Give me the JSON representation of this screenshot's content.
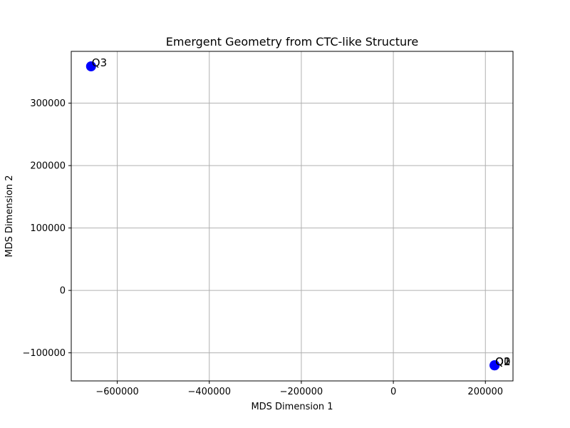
{
  "chart_data": {
    "type": "scatter",
    "title": "Emergent Geometry from CTC-like Structure",
    "xlabel": "MDS Dimension 1",
    "ylabel": "MDS Dimension 2",
    "xlim": [
      -700000,
      260000
    ],
    "ylim": [
      -145000,
      383000
    ],
    "grid": true,
    "xticks": [
      -600000,
      -400000,
      -200000,
      0,
      200000
    ],
    "xtick_labels": [
      "−600000",
      "−400000",
      "−200000",
      "0",
      "200000"
    ],
    "yticks": [
      -100000,
      0,
      100000,
      200000,
      300000
    ],
    "ytick_labels": [
      "−100000",
      "0",
      "100000",
      "200000",
      "300000"
    ],
    "points": [
      {
        "label": "Q0",
        "x": 220000,
        "y": -120000
      },
      {
        "label": "Q1",
        "x": 220000,
        "y": -120000
      },
      {
        "label": "Q2",
        "x": 220000,
        "y": -120000
      },
      {
        "label": "Q3",
        "x": -657000,
        "y": 359000
      }
    ],
    "marker_color": "#0000ff"
  }
}
